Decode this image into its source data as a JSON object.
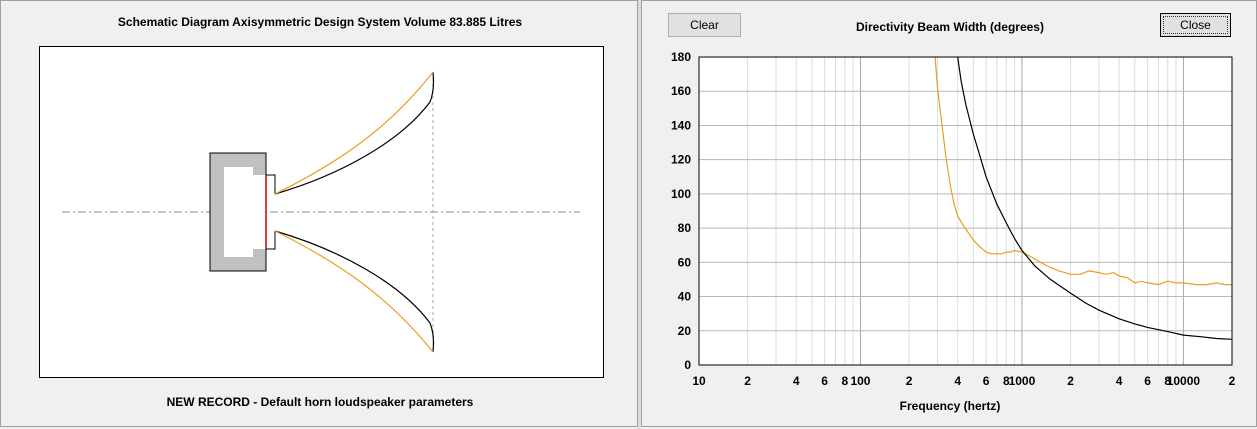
{
  "left_panel": {
    "title": "Schematic Diagram   Axisymmetric Design   System Volume 83.885 Litres",
    "footer": "NEW RECORD - Default horn loudspeaker parameters"
  },
  "right_panel": {
    "clear_label": "Clear",
    "close_label": "Close"
  },
  "colors": {
    "orange": "#e8a020",
    "black": "#000000",
    "grid": "#c0c0c0",
    "driver_gray": "#c0c0c0",
    "diaphragm_red": "#cc0000"
  },
  "chart_data": {
    "type": "line",
    "title": "Directivity Beam Width (degrees)",
    "xlabel": "Frequency (hertz)",
    "ylabel": "",
    "xscale": "log",
    "xlim": [
      10,
      20000
    ],
    "ylim": [
      0,
      180
    ],
    "yticks": [
      0,
      20,
      40,
      60,
      80,
      100,
      120,
      140,
      160,
      180
    ],
    "xtick_labels": [
      {
        "value": 10,
        "label": "10"
      },
      {
        "value": 20,
        "label": "2"
      },
      {
        "value": 40,
        "label": "4"
      },
      {
        "value": 60,
        "label": "6"
      },
      {
        "value": 80,
        "label": "8"
      },
      {
        "value": 100,
        "label": "100"
      },
      {
        "value": 200,
        "label": "2"
      },
      {
        "value": 400,
        "label": "4"
      },
      {
        "value": 600,
        "label": "6"
      },
      {
        "value": 800,
        "label": "8"
      },
      {
        "value": 1000,
        "label": "1000"
      },
      {
        "value": 2000,
        "label": "2"
      },
      {
        "value": 4000,
        "label": "4"
      },
      {
        "value": 6000,
        "label": "6"
      },
      {
        "value": 8000,
        "label": "8"
      },
      {
        "value": 10000,
        "label": "10000"
      },
      {
        "value": 20000,
        "label": "2"
      }
    ],
    "grid": true,
    "series": [
      {
        "color": "#e8a020",
        "x": [
          290,
          300,
          320,
          340,
          360,
          380,
          400,
          430,
          460,
          500,
          550,
          600,
          650,
          700,
          750,
          800,
          850,
          900,
          1000,
          1100,
          1200,
          1300,
          1500,
          1700,
          2000,
          2300,
          2600,
          3000,
          3300,
          3700,
          4000,
          4500,
          5000,
          5500,
          6000,
          7000,
          8000,
          9000,
          10000,
          12000,
          14000,
          16000,
          18000,
          20000
        ],
        "y": [
          180,
          162,
          140,
          120,
          105,
          94,
          87,
          82,
          78,
          73,
          69,
          66,
          65,
          65,
          65,
          66,
          66,
          67,
          66,
          64,
          62,
          60,
          57,
          55,
          53,
          53,
          55,
          54,
          53,
          54,
          52,
          51,
          48,
          49,
          48,
          47,
          49,
          48,
          48,
          47,
          47,
          48,
          47,
          47
        ]
      },
      {
        "color": "#000000",
        "x": [
          400,
          420,
          450,
          500,
          550,
          600,
          700,
          800,
          900,
          1000,
          1200,
          1500,
          2000,
          2500,
          3000,
          4000,
          5000,
          6000,
          8000,
          10000,
          13000,
          16000,
          20000
        ],
        "y": [
          180,
          166,
          152,
          135,
          122,
          110,
          94,
          83,
          74,
          67,
          58,
          50,
          42,
          36,
          32,
          27,
          24,
          22,
          19.5,
          17.5,
          16.5,
          15.5,
          15
        ]
      }
    ]
  }
}
